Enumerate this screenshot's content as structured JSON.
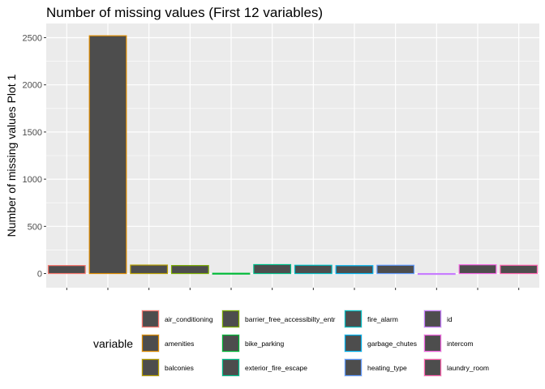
{
  "chart_data": {
    "type": "bar",
    "title": "Number of missing values (First 12 variables)",
    "xlabel": "",
    "ylabel": "Number of missing values Plot 1",
    "ylim": [
      -150,
      2650
    ],
    "yticks": [
      0,
      500,
      1000,
      1500,
      2000,
      2500
    ],
    "grid": true,
    "legend_position": "bottom",
    "legend_title": "variable",
    "bar_fill": "#4d4d4d",
    "panel_background": "#ebebeb",
    "grid_color": "#ffffff",
    "categories": [
      "air_conditioning",
      "amenities",
      "balconies",
      "barrier_free_accessibilty_entr",
      "bike_parking",
      "exterior_fire_escape",
      "fire_alarm",
      "garbage_chutes",
      "heating_type",
      "id",
      "intercom",
      "laundry_room"
    ],
    "values": [
      85,
      2520,
      90,
      85,
      3,
      95,
      88,
      84,
      88,
      0,
      93,
      88
    ],
    "colors": [
      "#F8766D",
      "#DE8C00",
      "#B79F00",
      "#7CAE00",
      "#00BA38",
      "#00C08B",
      "#00BFC4",
      "#00B4F0",
      "#619CFF",
      "#C77CFF",
      "#F564E3",
      "#FF64B0"
    ]
  }
}
